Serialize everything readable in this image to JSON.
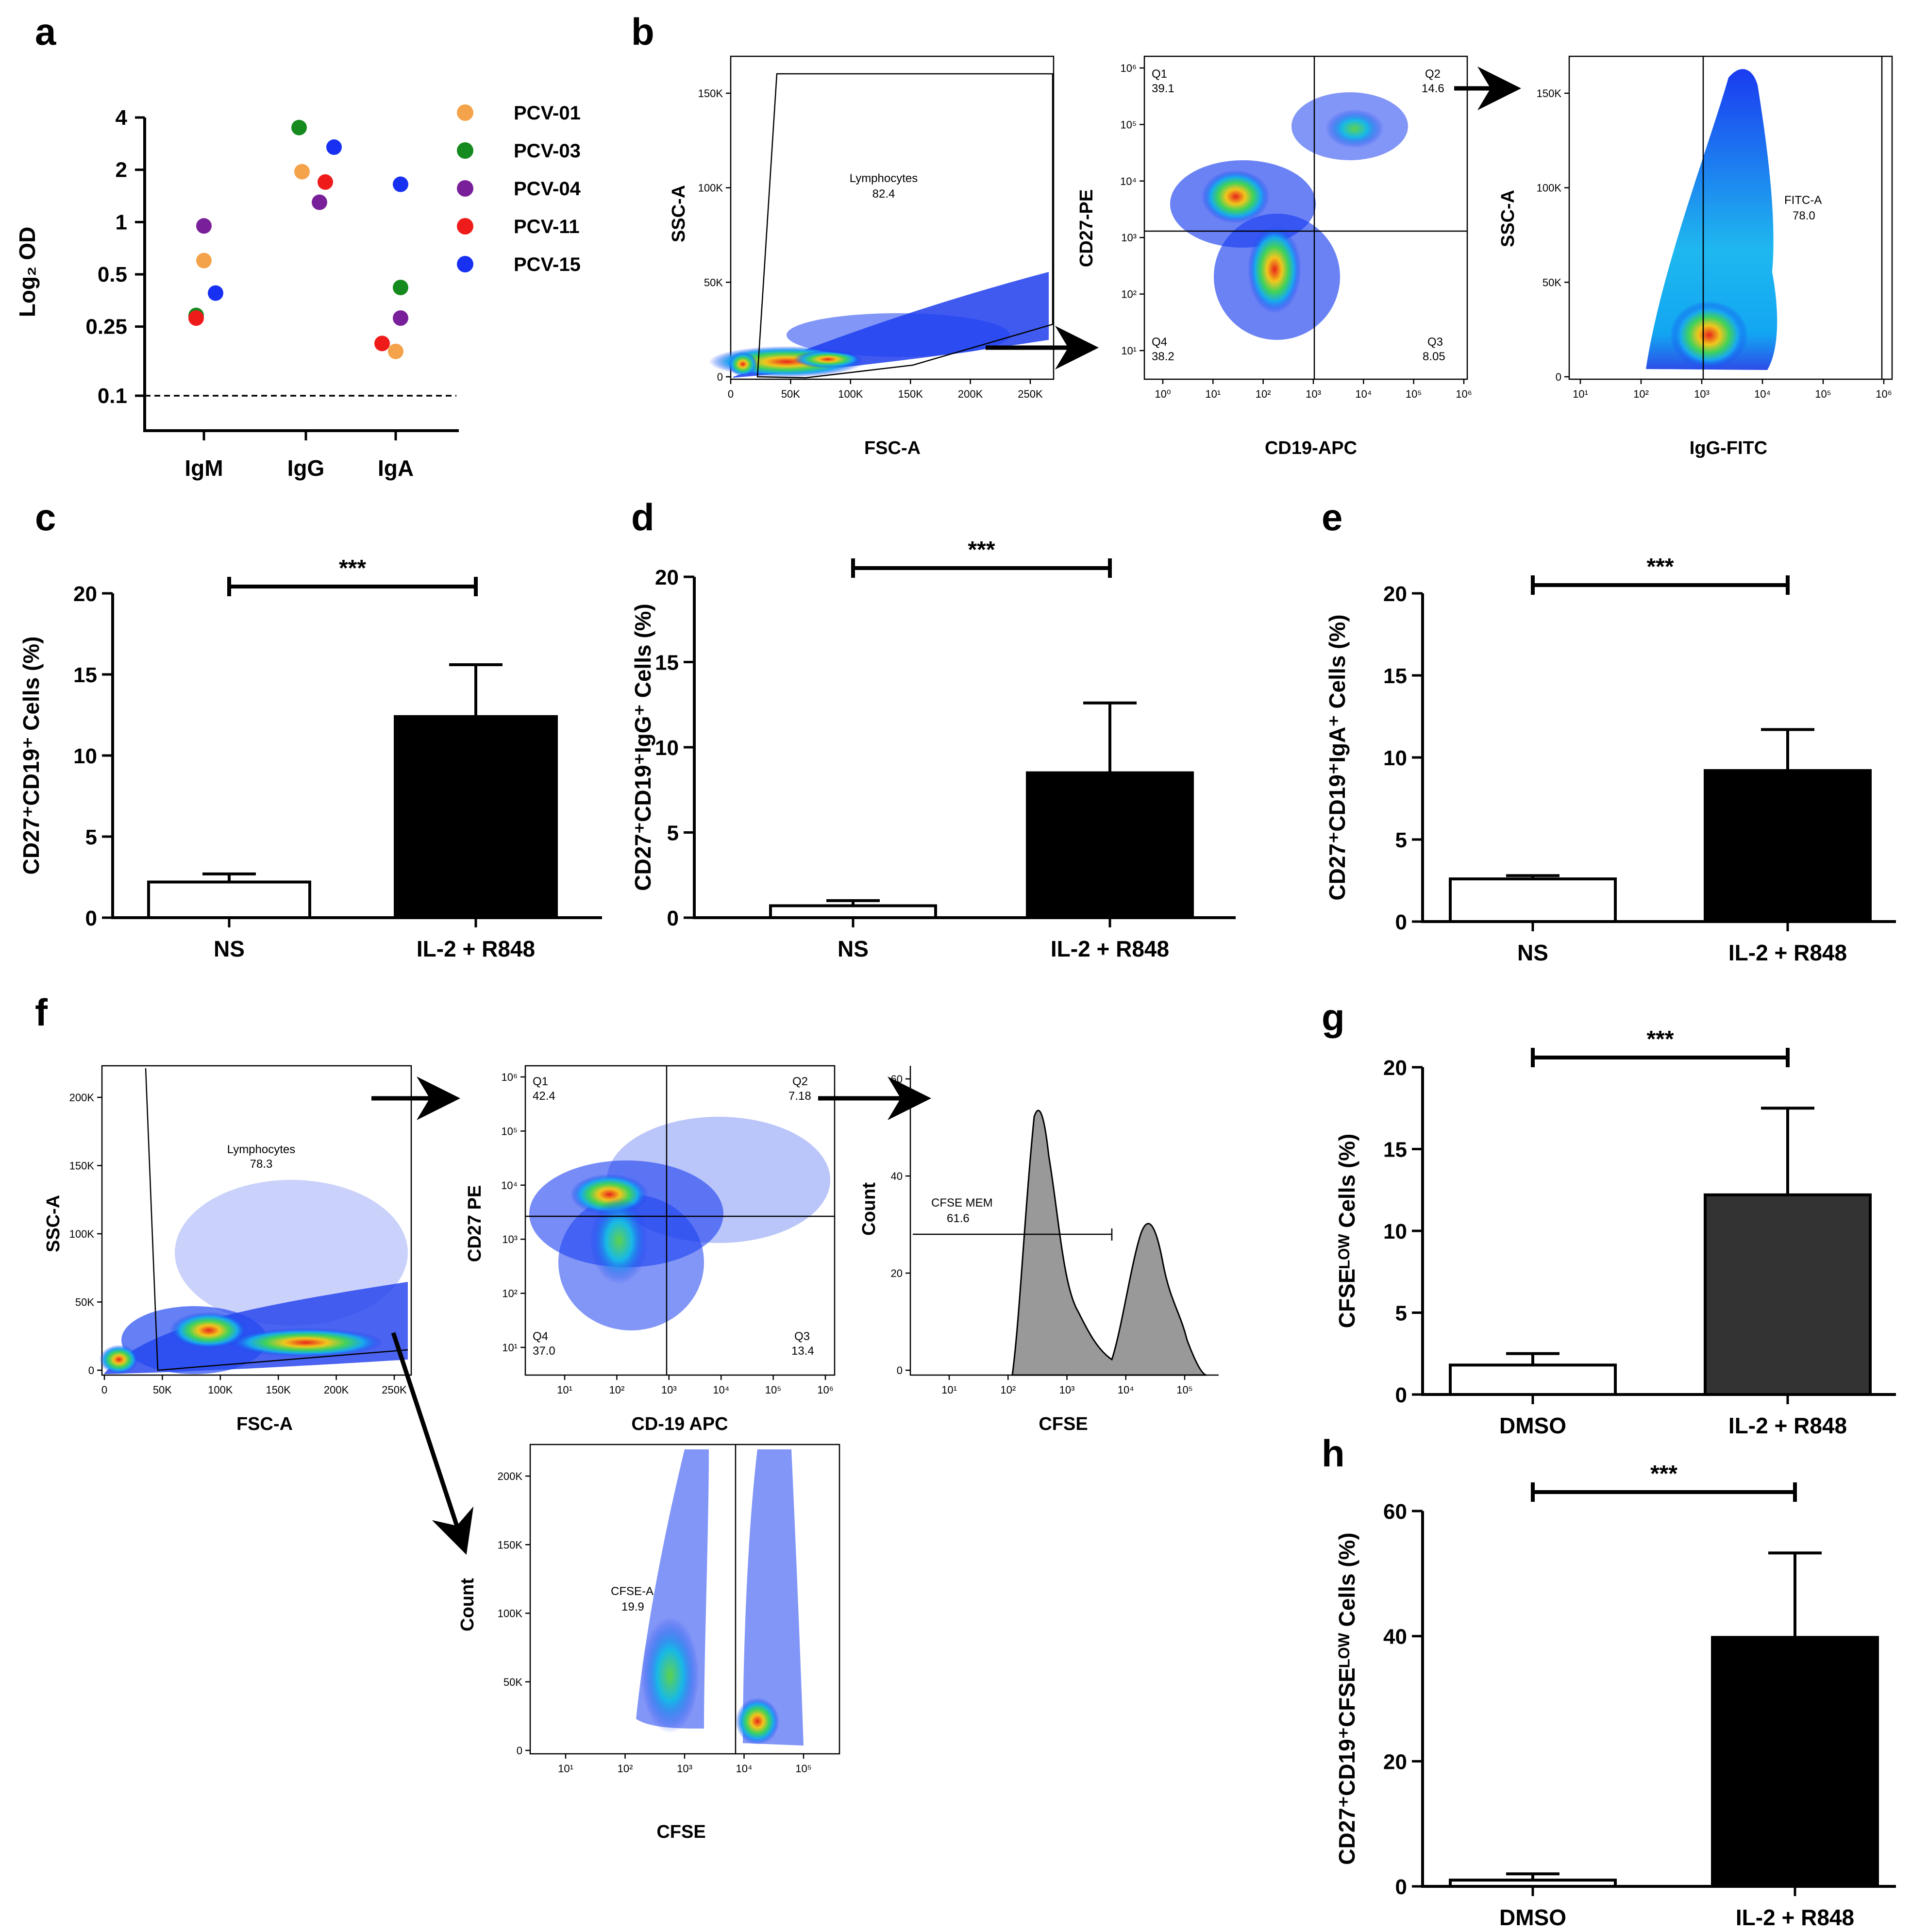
{
  "panel_labels": [
    "a",
    "b",
    "c",
    "d",
    "e",
    "f",
    "g",
    "h"
  ],
  "colors": {
    "PCV-01": "#f5a34a",
    "PCV-03": "#158a1e",
    "PCV-04": "#7a1f9a",
    "PCV-11": "#ef1b1b",
    "PCV-15": "#1830f2",
    "bar_black": "#000000",
    "bar_dark": "#333333",
    "bar_white": "#ffffff",
    "histogram_fill": "#999999"
  },
  "chart_data": [
    {
      "panel": "a",
      "type": "scatter",
      "ylabel": "Log₂ OD",
      "yscale": "log2",
      "ytick_labels": [
        "4",
        "2",
        "1",
        "0.5",
        "0.25",
        "0.1"
      ],
      "yticks": [
        4,
        2,
        1,
        0.5,
        0.25,
        0.1
      ],
      "categories": [
        "IgM",
        "IgG",
        "IgA"
      ],
      "reference_line": 0.1,
      "series": [
        {
          "name": "PCV-01",
          "values": [
            0.6,
            1.95,
            0.18
          ]
        },
        {
          "name": "PCV-03",
          "values": [
            0.29,
            3.5,
            0.42
          ]
        },
        {
          "name": "PCV-04",
          "values": [
            0.95,
            1.3,
            0.28
          ]
        },
        {
          "name": "PCV-11",
          "values": [
            0.28,
            1.7,
            0.2
          ]
        },
        {
          "name": "PCV-15",
          "values": [
            0.39,
            2.7,
            1.65
          ]
        }
      ]
    },
    {
      "panel": "c",
      "type": "bar",
      "ylabel": "CD27⁺CD19⁺ Cells (%)",
      "ylim": [
        0,
        20
      ],
      "ytick_labels": [
        "0",
        "5",
        "10",
        "15",
        "20"
      ],
      "categories": [
        "NS",
        "IL-2 + R848"
      ],
      "values": [
        2.2,
        12.4
      ],
      "errors": [
        0.5,
        3.2
      ],
      "significance": "***"
    },
    {
      "panel": "d",
      "type": "bar",
      "ylabel": "CD27⁺CD19⁺IgG⁺ Cells (%)",
      "ylim": [
        0,
        20
      ],
      "ytick_labels": [
        "0",
        "5",
        "10",
        "15",
        "20"
      ],
      "categories": [
        "NS",
        "IL-2 + R848"
      ],
      "values": [
        0.7,
        8.5
      ],
      "errors": [
        0.3,
        4.1
      ],
      "significance": "***"
    },
    {
      "panel": "e",
      "type": "bar",
      "ylabel": "CD27⁺CD19⁺IgA⁺ Cells (%)",
      "ylim": [
        0,
        20
      ],
      "ytick_labels": [
        "0",
        "5",
        "10",
        "15",
        "20"
      ],
      "categories": [
        "NS",
        "IL-2 + R848"
      ],
      "values": [
        2.6,
        9.2
      ],
      "errors": [
        0.2,
        2.5
      ],
      "significance": "***"
    },
    {
      "panel": "g",
      "type": "bar",
      "ylabel": "CFSEᴸᴼᵂ Cells (%)",
      "ylim": [
        0,
        20
      ],
      "ytick_labels": [
        "0",
        "5",
        "10",
        "15",
        "20"
      ],
      "categories": [
        "DMSO",
        "IL-2 + R848"
      ],
      "values": [
        1.8,
        12.2
      ],
      "errors": [
        0.7,
        5.3
      ],
      "significance": "***"
    },
    {
      "panel": "h",
      "type": "bar",
      "ylabel": "CD27⁺CD19⁺CFSEᴸᴼᵂ Cells (%)",
      "ylim": [
        0,
        60
      ],
      "ytick_labels": [
        "0",
        "20",
        "40",
        "60"
      ],
      "categories": [
        "DMSO",
        "IL-2 + R848"
      ],
      "values": [
        1.0,
        39.8
      ],
      "errors": [
        1.0,
        13.5
      ],
      "significance": "***"
    }
  ],
  "flow": {
    "b1": {
      "ylabel": "SSC-A",
      "xlabel": "FSC-A",
      "yticks": [
        "150K",
        "100K",
        "50K",
        "0"
      ],
      "xticks": [
        "0",
        "50K",
        "100K",
        "150K",
        "200K",
        "250K"
      ],
      "gate_name": "Lymphocytes",
      "gate_value": "82.4"
    },
    "b2": {
      "ylabel": "CD27-PE",
      "xlabel": "CD19-APC",
      "yticks": [
        "10⁶",
        "10⁵",
        "10⁴",
        "10³",
        "10²",
        "10¹"
      ],
      "xticks": [
        "10⁰",
        "10¹",
        "10²",
        "10³",
        "10⁴",
        "10⁵",
        "10⁶"
      ],
      "quadrants": {
        "Q1": "39.1",
        "Q2": "14.6",
        "Q3": "8.05",
        "Q4": "38.2"
      }
    },
    "b3": {
      "ylabel": "SSC-A",
      "xlabel": "IgG-FITC",
      "yticks": [
        "150K",
        "100K",
        "50K",
        "0"
      ],
      "xticks": [
        "10¹",
        "10²",
        "10³",
        "10⁴",
        "10⁵",
        "10⁶"
      ],
      "gate_name": "FITC-A",
      "gate_value": "78.0"
    },
    "f1": {
      "ylabel": "SSC-A",
      "xlabel": "FSC-A",
      "yticks": [
        "200K",
        "150K",
        "100K",
        "50K",
        "0"
      ],
      "xticks": [
        "0",
        "50K",
        "100K",
        "150K",
        "200K",
        "250K"
      ],
      "gate_name": "Lymphocytes",
      "gate_value": "78.3"
    },
    "f2": {
      "ylabel": "CD27 PE",
      "xlabel": "CD-19 APC",
      "yticks": [
        "10⁶",
        "10⁵",
        "10⁴",
        "10³",
        "10²",
        "10¹"
      ],
      "xticks": [
        "10¹",
        "10²",
        "10³",
        "10⁴",
        "10⁵",
        "10⁶"
      ],
      "quadrants": {
        "Q1": "42.4",
        "Q2": "7.18",
        "Q3": "13.4",
        "Q4": "37.0"
      }
    },
    "f3": {
      "ylabel": "Count",
      "xlabel": "CFSE",
      "yticks": [
        "60",
        "40",
        "20",
        "0"
      ],
      "xticks": [
        "10¹",
        "10²",
        "10³",
        "10⁴",
        "10⁵"
      ],
      "gate_name": "CFSE MEM",
      "gate_value": "61.6"
    },
    "f4": {
      "ylabel": "Count",
      "xlabel": "CFSE",
      "yticks": [
        "200K",
        "150K",
        "100K",
        "50K",
        "0"
      ],
      "xticks": [
        "10¹",
        "10²",
        "10³",
        "10⁴",
        "10⁵"
      ],
      "gate_name": "CFSE-A",
      "gate_value": "19.9"
    }
  }
}
